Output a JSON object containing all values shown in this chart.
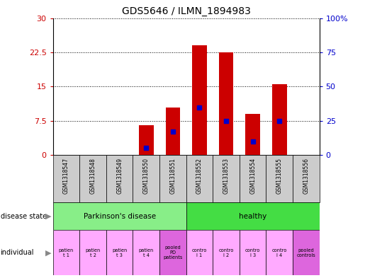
{
  "title": "GDS5646 / ILMN_1894983",
  "samples": [
    "GSM1318547",
    "GSM1318548",
    "GSM1318549",
    "GSM1318550",
    "GSM1318551",
    "GSM1318552",
    "GSM1318553",
    "GSM1318554",
    "GSM1318555",
    "GSM1318556"
  ],
  "counts": [
    0,
    0,
    0,
    6.5,
    10.5,
    24.0,
    22.5,
    9.0,
    15.5,
    0
  ],
  "percentiles": [
    0,
    0,
    0,
    5.5,
    17,
    35,
    25,
    10,
    25,
    0
  ],
  "ylim_left": [
    0,
    30
  ],
  "ylim_right": [
    0,
    100
  ],
  "yticks_left": [
    0,
    7.5,
    15,
    22.5,
    30
  ],
  "yticks_right": [
    0,
    25,
    50,
    75,
    100
  ],
  "bar_color": "#cc0000",
  "dot_color": "#0000cc",
  "bg_color": "#ffffff",
  "sample_bg": "#cccccc",
  "pd_color": "#88ee88",
  "healthy_color": "#44dd44",
  "normal_indiv_color": "#ffaaff",
  "pooled_indiv_color": "#dd66dd",
  "left_tick_color": "#cc0000",
  "right_tick_color": "#0000cc"
}
